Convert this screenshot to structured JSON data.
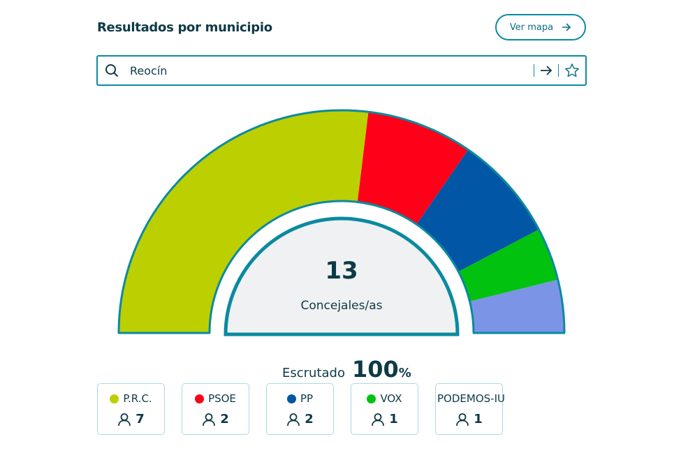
{
  "header": {
    "title": "Resultados por municipio",
    "map_button": "Ver mapa"
  },
  "search": {
    "value": "Reocín",
    "icon": "search-icon",
    "go_icon": "arrow-right-icon",
    "fav_icon": "star-icon"
  },
  "summary": {
    "seats": "13",
    "seats_label": "Concejales/as",
    "scrutiny_label": "Escrutado",
    "scrutiny_value": "100",
    "scrutiny_unit": "%"
  },
  "chart_data": {
    "type": "pie",
    "categories": [
      "P.R.C.",
      "PSOE",
      "PP",
      "VOX",
      "PODEMOS-IU"
    ],
    "values": [
      7,
      2,
      2,
      1,
      1
    ],
    "colors": [
      "#bccf00",
      "#ff0019",
      "#0156a5",
      "#00c20f",
      "#7b94e6"
    ]
  },
  "parties": [
    {
      "name": "P.R.C.",
      "seats": "7",
      "color": "#bccf00"
    },
    {
      "name": "PSOE",
      "seats": "2",
      "color": "#ff0019"
    },
    {
      "name": "PP",
      "seats": "2",
      "color": "#0156a5"
    },
    {
      "name": "VOX",
      "seats": "1",
      "color": "#00c20f"
    },
    {
      "name": "PODEMOS-IU",
      "seats": "1",
      "color": "#7b94e6"
    }
  ]
}
